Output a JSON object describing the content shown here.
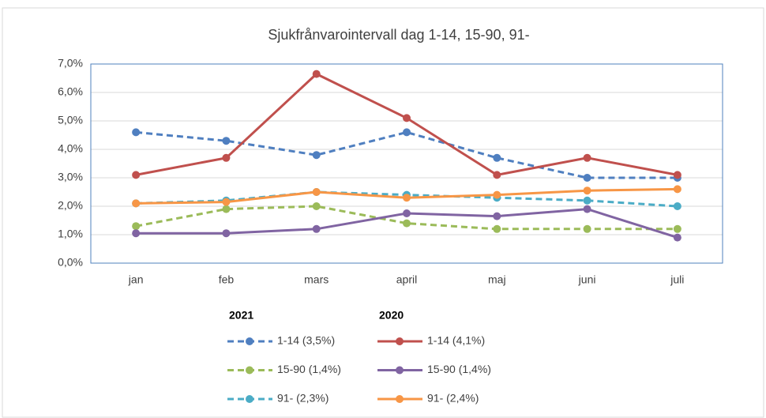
{
  "chart_data": {
    "type": "line",
    "title": "Sjukfrånvarointervall dag 1-14, 15-90, 91-",
    "categories": [
      "jan",
      "feb",
      "mars",
      "april",
      "maj",
      "juni",
      "juli"
    ],
    "ylim": [
      0,
      7
    ],
    "yticks": [
      {
        "value": 0,
        "label": "0,0%"
      },
      {
        "value": 1,
        "label": "1,0%"
      },
      {
        "value": 2,
        "label": "2,0%"
      },
      {
        "value": 3,
        "label": "3,0%"
      },
      {
        "value": 4,
        "label": "4,0%"
      },
      {
        "value": 5,
        "label": "5,0%"
      },
      {
        "value": 6,
        "label": "6,0%"
      },
      {
        "value": 7,
        "label": "7,0%"
      }
    ],
    "grid": true,
    "legend_groups": [
      "2021",
      "2020"
    ],
    "series": [
      {
        "name": "1-14 (3,5%)",
        "color": "#4f7fc0",
        "dashed": true,
        "values": [
          4.6,
          4.3,
          3.8,
          4.6,
          3.7,
          3.0,
          3.0
        ]
      },
      {
        "name": "1-14 (4,1%)",
        "color": "#c0504d",
        "dashed": false,
        "values": [
          3.1,
          3.7,
          6.65,
          5.1,
          3.1,
          3.7,
          3.1
        ]
      },
      {
        "name": "15-90 (1,4%)",
        "color": "#9bbb59",
        "dashed": true,
        "values": [
          1.3,
          1.9,
          2.0,
          1.4,
          1.2,
          1.2,
          1.2
        ]
      },
      {
        "name": "15-90 (1,4%)",
        "color": "#8064a2",
        "dashed": false,
        "values": [
          1.05,
          1.05,
          1.2,
          1.75,
          1.65,
          1.9,
          0.9
        ]
      },
      {
        "name": "91- (2,3%)",
        "color": "#4bacc6",
        "dashed": true,
        "values": [
          2.1,
          2.2,
          2.5,
          2.4,
          2.3,
          2.2,
          2.0
        ]
      },
      {
        "name": "91- (2,4%)",
        "color": "#f79646",
        "dashed": false,
        "values": [
          2.1,
          2.15,
          2.5,
          2.3,
          2.4,
          2.55,
          2.6
        ]
      }
    ]
  }
}
